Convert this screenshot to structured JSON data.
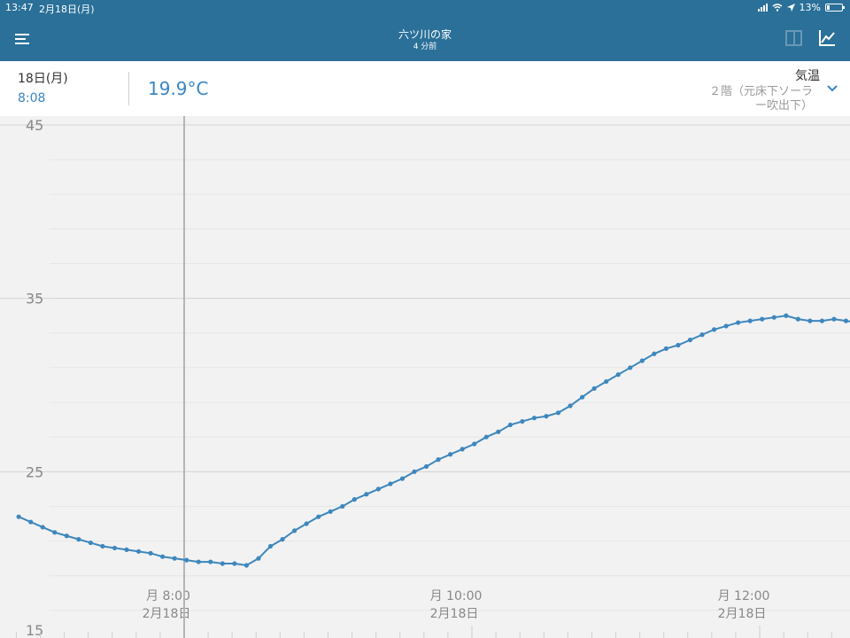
{
  "status_bar": {
    "time": "13:47",
    "date": "2月18日(月)",
    "battery": "13%"
  },
  "nav": {
    "title": "六ツ川の家",
    "subtitle": "4 分前",
    "menu_icon": "hamburger-menu-icon",
    "panel_icon": "panel-layout-icon",
    "graph_icon": "line-chart-icon"
  },
  "info": {
    "day": "18日(月)",
    "time": "8:08",
    "temperature": "19.9°C",
    "metric": "気温",
    "sensor_line1": "２階（元床下ソーラ",
    "sensor_line2": "ー吹出下）"
  },
  "colors": {
    "header": "#2a7099",
    "accent": "#3a86c2",
    "series": "#3d87bd"
  },
  "chart_data": {
    "type": "line",
    "title": "",
    "xlabel": "",
    "ylabel": "",
    "ylim": [
      15,
      45
    ],
    "y_ticks": [
      "45",
      "35",
      "25",
      "15"
    ],
    "y_tick_values": [
      45,
      35,
      25,
      15
    ],
    "x_ticks": [
      {
        "label": "月 8:00",
        "date": "2月18日",
        "minute": 480
      },
      {
        "label": "月 10:00",
        "date": "2月18日",
        "minute": 600
      },
      {
        "label": "月 12:00",
        "date": "2月18日",
        "minute": 720
      }
    ],
    "cursor_minute": 480,
    "series": [
      {
        "name": "",
        "x_minutes": [
          411,
          416,
          421,
          426,
          431,
          436,
          441,
          446,
          451,
          456,
          461,
          466,
          471,
          476,
          481,
          486,
          491,
          496,
          501,
          506,
          511,
          516,
          521,
          526,
          531,
          536,
          541,
          546,
          551,
          556,
          561,
          566,
          571,
          576,
          581,
          586,
          591,
          596,
          601,
          606,
          611,
          616,
          621,
          626,
          631,
          636,
          641,
          646,
          651,
          656,
          661,
          666,
          671,
          676,
          681,
          686,
          691,
          696,
          701,
          706,
          711,
          716,
          721,
          726,
          731,
          736,
          741,
          746,
          751,
          756,
          761
        ],
        "values": [
          22.4,
          22.1,
          21.8,
          21.5,
          21.3,
          21.1,
          20.9,
          20.7,
          20.6,
          20.5,
          20.4,
          20.3,
          20.1,
          20.0,
          19.9,
          19.8,
          19.8,
          19.7,
          19.7,
          19.6,
          20.0,
          20.7,
          21.1,
          21.6,
          22.0,
          22.4,
          22.7,
          23.0,
          23.4,
          23.7,
          24.0,
          24.3,
          24.6,
          25.0,
          25.3,
          25.7,
          26.0,
          26.3,
          26.6,
          27.0,
          27.3,
          27.7,
          27.9,
          28.1,
          28.2,
          28.4,
          28.8,
          29.3,
          29.8,
          30.2,
          30.6,
          31.0,
          31.4,
          31.8,
          32.1,
          32.3,
          32.6,
          32.9,
          33.2,
          33.4,
          33.6,
          33.7,
          33.8,
          33.9,
          34.0,
          33.8,
          33.7,
          33.7,
          33.8,
          33.7,
          33.6
        ]
      }
    ]
  }
}
